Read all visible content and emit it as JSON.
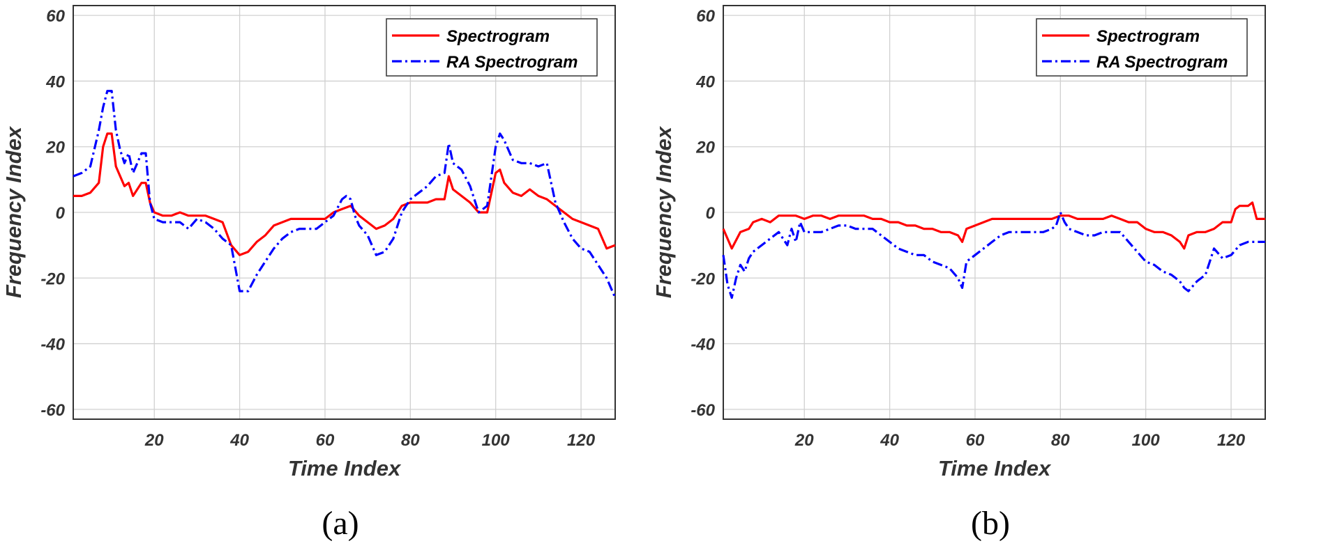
{
  "chart_data": [
    {
      "type": "line",
      "caption": "(a)",
      "xlabel": "Time Index",
      "ylabel": "Frequency Index",
      "xlim": [
        1,
        128
      ],
      "ylim": [
        -63,
        63
      ],
      "xticks": [
        20,
        40,
        60,
        80,
        100,
        120
      ],
      "yticks": [
        -60,
        -40,
        -20,
        0,
        20,
        40,
        60
      ],
      "grid": true,
      "legend_position": "top-right",
      "colors": {
        "spectrogram": "#ff0000",
        "ra": "#0000ff"
      },
      "series": [
        {
          "name": "Spectrogram",
          "style": "solid",
          "x": [
            1,
            3,
            5,
            7,
            8,
            9,
            10,
            11,
            12,
            13,
            14,
            15,
            16,
            17,
            18,
            19,
            20,
            22,
            24,
            26,
            28,
            30,
            32,
            34,
            36,
            38,
            40,
            42,
            44,
            46,
            48,
            50,
            52,
            54,
            56,
            58,
            60,
            62,
            64,
            66,
            68,
            70,
            72,
            74,
            76,
            78,
            80,
            82,
            84,
            86,
            88,
            89,
            90,
            92,
            94,
            96,
            98,
            100,
            101,
            102,
            104,
            106,
            108,
            110,
            112,
            114,
            116,
            118,
            120,
            122,
            124,
            126,
            128
          ],
          "y": [
            5,
            5,
            6,
            9,
            20,
            24,
            24,
            14,
            11,
            8,
            9,
            5,
            7,
            9,
            9,
            3,
            0,
            -1,
            -1,
            0,
            -1,
            -1,
            -1,
            -2,
            -3,
            -10,
            -13,
            -12,
            -9,
            -7,
            -4,
            -3,
            -2,
            -2,
            -2,
            -2,
            -2,
            0,
            1,
            2,
            -1,
            -3,
            -5,
            -4,
            -2,
            2,
            3,
            3,
            3,
            4,
            4,
            11,
            7,
            5,
            3,
            0,
            0,
            12,
            13,
            9,
            6,
            5,
            7,
            5,
            4,
            2,
            0,
            -2,
            -3,
            -4,
            -5,
            -11,
            -10
          ]
        },
        {
          "name": "RA Spectrogram",
          "style": "dashdot",
          "x": [
            1,
            3,
            5,
            7,
            8,
            9,
            10,
            11,
            12,
            13,
            14,
            15,
            16,
            17,
            18,
            19,
            20,
            22,
            24,
            26,
            28,
            30,
            32,
            34,
            36,
            38,
            40,
            42,
            44,
            46,
            48,
            50,
            52,
            54,
            56,
            58,
            60,
            62,
            64,
            65,
            66,
            67,
            68,
            70,
            72,
            74,
            76,
            78,
            80,
            82,
            84,
            86,
            88,
            89,
            90,
            92,
            94,
            96,
            98,
            100,
            101,
            102,
            104,
            106,
            108,
            110,
            112,
            114,
            116,
            118,
            120,
            122,
            124,
            126,
            128
          ],
          "y": [
            11,
            12,
            14,
            25,
            32,
            37,
            37,
            25,
            19,
            15,
            18,
            12,
            15,
            18,
            18,
            3,
            -2,
            -3,
            -3,
            -3,
            -5,
            -2,
            -3,
            -5,
            -8,
            -10,
            -24,
            -24,
            -19,
            -15,
            -11,
            -8,
            -6,
            -5,
            -5,
            -5,
            -3,
            -1,
            4,
            5,
            4,
            -1,
            -4,
            -7,
            -13,
            -12,
            -8,
            0,
            4,
            6,
            8,
            11,
            12,
            21,
            15,
            13,
            8,
            0,
            2,
            20,
            24,
            22,
            16,
            15,
            15,
            14,
            15,
            3,
            -3,
            -8,
            -11,
            -12,
            -16,
            -20,
            -26
          ]
        }
      ]
    },
    {
      "type": "line",
      "caption": "(b)",
      "xlabel": "Time Index",
      "ylabel": "Frequency Index",
      "xlim": [
        1,
        128
      ],
      "ylim": [
        -63,
        63
      ],
      "xticks": [
        20,
        40,
        60,
        80,
        100,
        120
      ],
      "yticks": [
        -60,
        -40,
        -20,
        0,
        20,
        40,
        60
      ],
      "grid": true,
      "legend_position": "top-right",
      "colors": {
        "spectrogram": "#ff0000",
        "ra": "#0000ff"
      },
      "series": [
        {
          "name": "Spectrogram",
          "style": "solid",
          "x": [
            1,
            3,
            5,
            7,
            8,
            10,
            12,
            14,
            16,
            18,
            20,
            22,
            24,
            26,
            28,
            30,
            32,
            34,
            36,
            38,
            40,
            42,
            44,
            46,
            48,
            50,
            52,
            54,
            56,
            57,
            58,
            60,
            62,
            64,
            66,
            68,
            70,
            72,
            74,
            76,
            78,
            80,
            82,
            84,
            86,
            88,
            90,
            92,
            94,
            96,
            98,
            100,
            102,
            104,
            106,
            108,
            109,
            110,
            112,
            114,
            116,
            118,
            120,
            121,
            122,
            124,
            125,
            126,
            128
          ],
          "y": [
            -5,
            -11,
            -6,
            -5,
            -3,
            -2,
            -3,
            -1,
            -1,
            -1,
            -2,
            -1,
            -1,
            -2,
            -1,
            -1,
            -1,
            -1,
            -2,
            -2,
            -3,
            -3,
            -4,
            -4,
            -5,
            -5,
            -6,
            -6,
            -7,
            -9,
            -5,
            -4,
            -3,
            -2,
            -2,
            -2,
            -2,
            -2,
            -2,
            -2,
            -2,
            -1,
            -1,
            -2,
            -2,
            -2,
            -2,
            -1,
            -2,
            -3,
            -3,
            -5,
            -6,
            -6,
            -7,
            -9,
            -11,
            -7,
            -6,
            -6,
            -5,
            -3,
            -3,
            1,
            2,
            2,
            3,
            -2,
            -2
          ]
        },
        {
          "name": "RA Spectrogram",
          "style": "dashdot",
          "x": [
            1,
            2,
            3,
            4,
            5,
            6,
            7,
            8,
            10,
            12,
            14,
            16,
            17,
            18,
            19,
            20,
            22,
            24,
            26,
            28,
            30,
            32,
            34,
            36,
            38,
            40,
            42,
            44,
            46,
            48,
            50,
            52,
            54,
            56,
            57,
            58,
            60,
            62,
            64,
            66,
            68,
            70,
            72,
            74,
            76,
            78,
            79,
            80,
            81,
            82,
            84,
            86,
            88,
            90,
            92,
            94,
            96,
            98,
            100,
            102,
            104,
            106,
            108,
            109,
            110,
            112,
            114,
            115,
            116,
            118,
            120,
            122,
            124,
            126,
            128
          ],
          "y": [
            -13,
            -22,
            -26,
            -20,
            -16,
            -18,
            -14,
            -12,
            -10,
            -8,
            -6,
            -10,
            -5,
            -9,
            -3,
            -6,
            -6,
            -6,
            -5,
            -4,
            -4,
            -5,
            -5,
            -5,
            -7,
            -9,
            -11,
            -12,
            -13,
            -13,
            -15,
            -16,
            -17,
            -20,
            -23,
            -15,
            -13,
            -11,
            -9,
            -7,
            -6,
            -6,
            -6,
            -6,
            -6,
            -5,
            -4,
            0,
            -3,
            -5,
            -6,
            -7,
            -7,
            -6,
            -6,
            -6,
            -9,
            -12,
            -15,
            -16,
            -18,
            -19,
            -21,
            -23,
            -24,
            -21,
            -19,
            -15,
            -11,
            -14,
            -13,
            -10,
            -9,
            -9,
            -9
          ]
        }
      ]
    }
  ]
}
